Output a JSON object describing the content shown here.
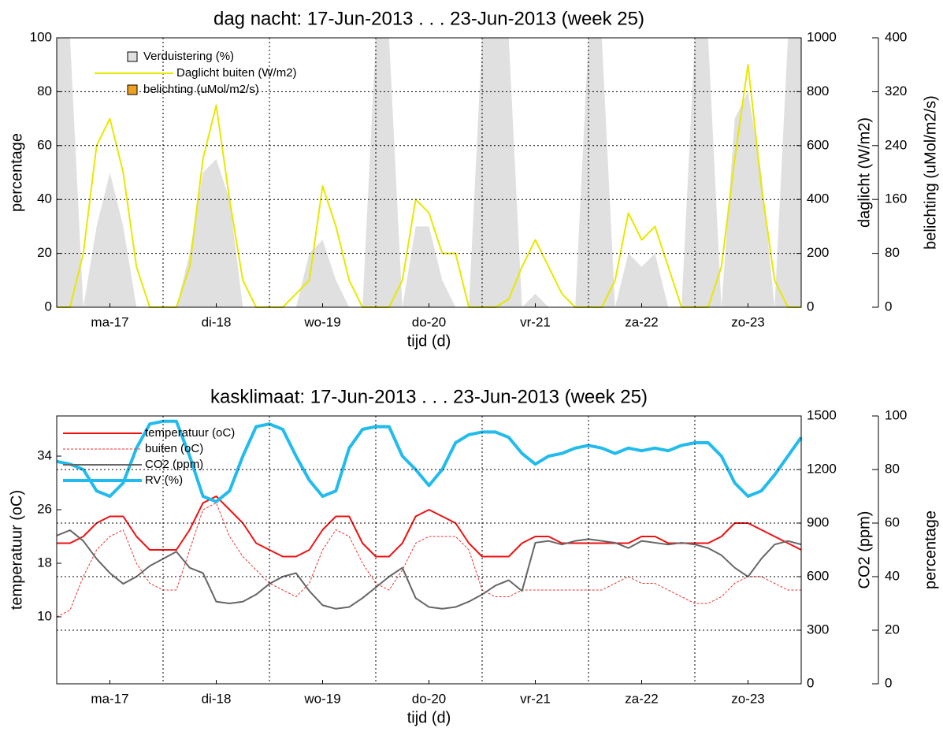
{
  "chart_data": [
    {
      "type": "line",
      "title": "dag nacht: 17-Jun-2013 . . . 23-Jun-2013 (week 25)",
      "xlabel": "tijd (d)",
      "ylabel": "percentage",
      "y2label": "daglicht (W/m2)",
      "y3label": "belichting (uMol/m2/s)",
      "x": [
        0,
        3,
        6,
        9,
        12,
        15,
        18,
        21,
        24,
        27,
        30,
        33,
        36,
        39,
        42,
        45,
        48,
        51,
        54,
        57,
        60,
        63,
        66,
        69,
        72,
        75,
        78,
        81,
        84,
        87,
        90,
        93,
        96,
        99,
        102,
        105,
        108,
        111,
        114,
        117,
        120,
        123,
        126,
        129,
        132,
        135,
        138,
        141,
        144,
        147,
        150,
        153,
        156,
        159,
        162,
        165,
        168
      ],
      "xlim": [
        0,
        168
      ],
      "xticks": [
        {
          "value": 12,
          "label": "ma-17"
        },
        {
          "value": 36,
          "label": "di-18"
        },
        {
          "value": 60,
          "label": "wo-19"
        },
        {
          "value": 84,
          "label": "do-20"
        },
        {
          "value": 108,
          "label": "vr-21"
        },
        {
          "value": 132,
          "label": "za-22"
        },
        {
          "value": 156,
          "label": "zo-23"
        }
      ],
      "xgrid": [
        24,
        48,
        72,
        96,
        120,
        144
      ],
      "ylim": [
        0,
        100
      ],
      "yticks": [
        0,
        20,
        40,
        60,
        80,
        100
      ],
      "y2lim": [
        0,
        1000
      ],
      "y2ticks": [
        0,
        200,
        400,
        600,
        800,
        1000
      ],
      "y3lim": [
        0,
        400
      ],
      "y3ticks": [
        0,
        80,
        160,
        240,
        320,
        400
      ],
      "grid": true,
      "grid_axis": "y",
      "series": [
        {
          "name": "Verduistering (%)",
          "type": "area",
          "color": "#e0e0e0",
          "axis": "y",
          "values": [
            100,
            100,
            0,
            30,
            50,
            30,
            0,
            0,
            0,
            0,
            20,
            50,
            55,
            40,
            0,
            0,
            0,
            0,
            0,
            20,
            25,
            10,
            0,
            0,
            100,
            100,
            0,
            30,
            30,
            10,
            0,
            0,
            100,
            100,
            100,
            0,
            5,
            0,
            0,
            0,
            100,
            100,
            0,
            20,
            15,
            20,
            0,
            0,
            100,
            100,
            0,
            70,
            80,
            50,
            0,
            100,
            100
          ]
        },
        {
          "name": "Daglicht buiten (W/m2)",
          "type": "line",
          "color": "#e8e800",
          "axis": "y2",
          "linewidth": 2,
          "values": [
            0,
            0,
            200,
            600,
            700,
            500,
            150,
            0,
            0,
            0,
            150,
            550,
            750,
            400,
            100,
            0,
            0,
            0,
            50,
            100,
            450,
            300,
            100,
            0,
            0,
            0,
            100,
            400,
            350,
            200,
            200,
            0,
            0,
            0,
            30,
            150,
            250,
            150,
            50,
            0,
            0,
            0,
            100,
            350,
            250,
            300,
            150,
            0,
            0,
            0,
            150,
            550,
            900,
            450,
            100,
            0,
            0
          ]
        },
        {
          "name": "belichting (uMol/m2/s)",
          "type": "area",
          "color": "#f0a020",
          "axis": "y3",
          "values": [
            0,
            0,
            0,
            0,
            0,
            0,
            0,
            0,
            0,
            0,
            0,
            0,
            0,
            0,
            0,
            0,
            0,
            0,
            0,
            0,
            0,
            0,
            0,
            0,
            0,
            0,
            0,
            0,
            0,
            0,
            0,
            0,
            0,
            0,
            0,
            0,
            0,
            0,
            0,
            0,
            0,
            0,
            0,
            0,
            0,
            0,
            0,
            0,
            0,
            0,
            0,
            0,
            0,
            0,
            0,
            0,
            0
          ]
        }
      ]
    },
    {
      "type": "line",
      "title": "kasklimaat: 17-Jun-2013 . . . 23-Jun-2013 (week 25)",
      "xlabel": "tijd (d)",
      "ylabel": "temperatuur (oC)",
      "y2label": "CO2 (ppm)",
      "y3label": "percentage",
      "x": [
        0,
        3,
        6,
        9,
        12,
        15,
        18,
        21,
        24,
        27,
        30,
        33,
        36,
        39,
        42,
        45,
        48,
        51,
        54,
        57,
        60,
        63,
        66,
        69,
        72,
        75,
        78,
        81,
        84,
        87,
        90,
        93,
        96,
        99,
        102,
        105,
        108,
        111,
        114,
        117,
        120,
        123,
        126,
        129,
        132,
        135,
        138,
        141,
        144,
        147,
        150,
        153,
        156,
        159,
        162,
        165,
        168
      ],
      "xlim": [
        0,
        168
      ],
      "xticks": [
        {
          "value": 12,
          "label": "ma-17"
        },
        {
          "value": 36,
          "label": "di-18"
        },
        {
          "value": 60,
          "label": "wo-19"
        },
        {
          "value": 84,
          "label": "do-20"
        },
        {
          "value": 108,
          "label": "vr-21"
        },
        {
          "value": 132,
          "label": "za-22"
        },
        {
          "value": 156,
          "label": "zo-23"
        }
      ],
      "xgrid": [
        24,
        48,
        72,
        96,
        120,
        144
      ],
      "ylim": [
        0,
        40
      ],
      "yticks": [
        10,
        18,
        26,
        34
      ],
      "y2lim": [
        0,
        1500
      ],
      "y2ticks": [
        0,
        300,
        600,
        900,
        1200,
        1500
      ],
      "y3lim": [
        0,
        100
      ],
      "y3ticks": [
        0,
        20,
        40,
        60,
        80,
        100
      ],
      "grid": true,
      "grid_axis": "y2",
      "series": [
        {
          "name": "temperatuur (oC)",
          "type": "line",
          "color": "#ee1111",
          "axis": "y",
          "linewidth": 2,
          "values": [
            21,
            21,
            22,
            24,
            25,
            25,
            22,
            20,
            20,
            20,
            23,
            27,
            28,
            26,
            24,
            21,
            20,
            19,
            19,
            20,
            23,
            25,
            25,
            21,
            19,
            19,
            21,
            25,
            26,
            25,
            24,
            21,
            19,
            19,
            19,
            21,
            22,
            22,
            21,
            21,
            21,
            21,
            21,
            21,
            22,
            22,
            21,
            21,
            21,
            21,
            22,
            24,
            24,
            23,
            22,
            21,
            20
          ]
        },
        {
          "name": "buiten (oC)",
          "type": "line",
          "color": "#ee3333",
          "axis": "y",
          "linewidth": 1,
          "dashed": true,
          "values": [
            10,
            11,
            16,
            20,
            22,
            23,
            18,
            15,
            14,
            14,
            20,
            26,
            27,
            22,
            19,
            17,
            15,
            14,
            13,
            15,
            20,
            23,
            22,
            18,
            15,
            14,
            17,
            21,
            22,
            22,
            22,
            20,
            14,
            13,
            13,
            14,
            14,
            14,
            14,
            14,
            14,
            14,
            15,
            16,
            15,
            15,
            14,
            13,
            12,
            12,
            13,
            15,
            16,
            16,
            15,
            14,
            14
          ]
        },
        {
          "name": "CO2 (ppm)",
          "type": "line",
          "color": "#666666",
          "axis": "y2",
          "linewidth": 2,
          "values": [
            830,
            860,
            800,
            700,
            620,
            560,
            600,
            660,
            700,
            740,
            650,
            620,
            460,
            450,
            460,
            500,
            560,
            600,
            620,
            520,
            440,
            420,
            430,
            480,
            540,
            600,
            650,
            480,
            430,
            420,
            430,
            460,
            500,
            550,
            580,
            520,
            790,
            800,
            780,
            800,
            810,
            800,
            790,
            760,
            800,
            790,
            780,
            790,
            780,
            760,
            720,
            650,
            600,
            700,
            780,
            800,
            780
          ]
        },
        {
          "name": "RV (%)",
          "type": "line",
          "color": "#22bbee",
          "axis": "y3",
          "linewidth": 4,
          "values": [
            83,
            82,
            80,
            72,
            70,
            75,
            88,
            97,
            98,
            98,
            85,
            70,
            68,
            72,
            85,
            96,
            97,
            95,
            85,
            76,
            70,
            72,
            88,
            95,
            96,
            96,
            85,
            80,
            74,
            80,
            90,
            93,
            94,
            94,
            92,
            86,
            82,
            85,
            86,
            88,
            89,
            88,
            86,
            88,
            87,
            88,
            87,
            89,
            90,
            90,
            85,
            75,
            70,
            72,
            78,
            85,
            92
          ]
        }
      ]
    }
  ]
}
